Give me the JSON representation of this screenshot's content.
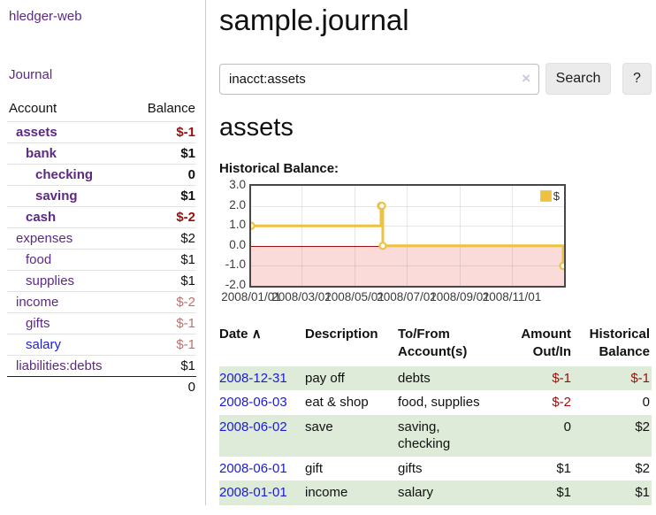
{
  "app": {
    "title": "hledger-web",
    "nav_journal": "Journal"
  },
  "sidebar": {
    "header": {
      "account": "Account",
      "balance": "Balance"
    },
    "accounts": [
      {
        "name": "assets",
        "balance": "$-1"
      },
      {
        "name": "bank",
        "balance": "$1"
      },
      {
        "name": "checking",
        "balance": "0"
      },
      {
        "name": "saving",
        "balance": "$1"
      },
      {
        "name": "cash",
        "balance": "$-2"
      },
      {
        "name": "expenses",
        "balance": "$2"
      },
      {
        "name": "food",
        "balance": "$1"
      },
      {
        "name": "supplies",
        "balance": "$1"
      },
      {
        "name": "income",
        "balance": "$-2"
      },
      {
        "name": "gifts",
        "balance": "$-1"
      },
      {
        "name": "salary",
        "balance": "$-1"
      },
      {
        "name": "liabilities:debts",
        "balance": "$1"
      }
    ],
    "total": "0"
  },
  "header": {
    "title": "sample.journal"
  },
  "search": {
    "value": "inacct:assets",
    "clear_icon": "×",
    "button_label": "Search",
    "help_label": "?"
  },
  "main": {
    "account_title": "assets",
    "chart_label": "Historical Balance:"
  },
  "chart_data": {
    "type": "line",
    "title": "Historical Balance",
    "step": true,
    "series": [
      {
        "name": "$",
        "color": "#edc240",
        "points": [
          [
            "2008-01-01",
            1
          ],
          [
            "2008-06-01",
            2
          ],
          [
            "2008-06-02",
            2
          ],
          [
            "2008-06-03",
            0
          ],
          [
            "2008-12-31",
            -1
          ]
        ]
      }
    ],
    "xrange": [
      "2008-01-01",
      "2008-12-31"
    ],
    "ylim": [
      -2,
      3
    ],
    "yticks": [
      "3.0",
      "2.0",
      "1.0",
      "0.0",
      "-1.0",
      "-2.0"
    ],
    "xticks": [
      "2008/01/01",
      "2008/03/01",
      "2008/05/01",
      "2008/07/01",
      "2008/09/01",
      "2008/11/01"
    ],
    "legend_position": "top-right",
    "grid": true,
    "negative_region_color": "#fbdada",
    "zero_line_color": "#9b0e0e",
    "border_color": "#474747"
  },
  "register_table": {
    "headers": {
      "date": "Date",
      "sort_indicator": "∧",
      "description": "Description",
      "account": "To/From\nAccount(s)",
      "amount": "Amount\nOut/In",
      "balance": "Historical\nBalance"
    },
    "rows": [
      {
        "date": "2008-12-31",
        "description": "pay off",
        "account": "debts",
        "amount": "$-1",
        "balance": "$-1"
      },
      {
        "date": "2008-06-03",
        "description": "eat & shop",
        "account": "food, supplies",
        "amount": "$-2",
        "balance": "0"
      },
      {
        "date": "2008-06-02",
        "description": "save",
        "account": "saving,\nchecking",
        "amount": "0",
        "balance": "$2"
      },
      {
        "date": "2008-06-01",
        "description": "gift",
        "account": "gifts",
        "amount": "$1",
        "balance": "$2"
      },
      {
        "date": "2008-01-01",
        "description": "income",
        "account": "salary",
        "amount": "$1",
        "balance": "$1"
      }
    ]
  }
}
